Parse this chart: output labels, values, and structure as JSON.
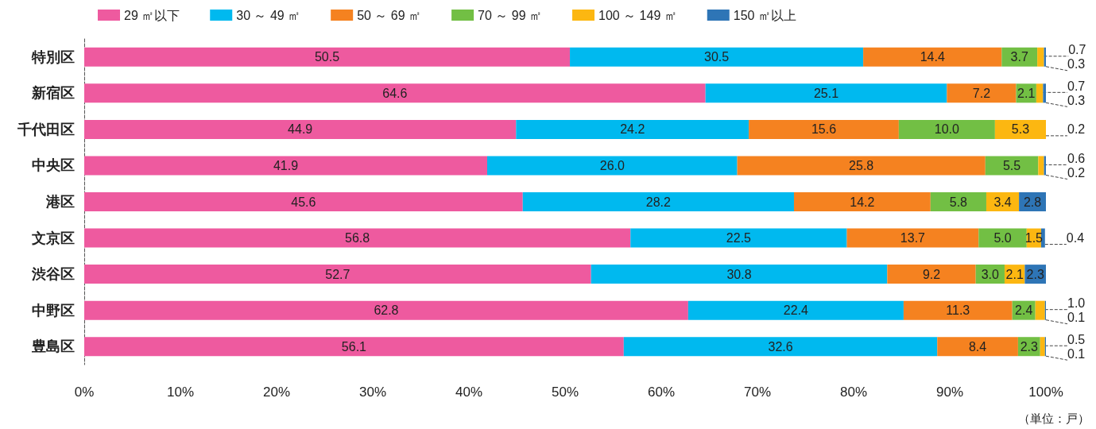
{
  "chart_data": {
    "type": "bar",
    "orientation": "horizontal",
    "stacked": true,
    "grid": false,
    "legend": "top left",
    "categories": [
      "特別区",
      "新宿区",
      "千代田区",
      "中央区",
      "港区",
      "文京区",
      "渋谷区",
      "中野区",
      "豊島区"
    ],
    "series": [
      {
        "name": "29 ㎡以下",
        "color": "#ee5a9f",
        "values": [
          50.5,
          64.6,
          44.9,
          41.9,
          45.6,
          56.8,
          52.7,
          62.8,
          56.1
        ],
        "value_labels": [
          "50.5",
          "64.6",
          "44.9",
          "41.9",
          "45.6",
          "56.8",
          "52.7",
          "62.8",
          "56.1"
        ]
      },
      {
        "name": "30 ～ 49 ㎡",
        "color": "#00b9ef",
        "values": [
          30.5,
          25.1,
          24.2,
          26.0,
          28.2,
          22.5,
          30.8,
          22.4,
          32.6
        ],
        "value_labels": [
          "30.5",
          "25.1",
          "24.2",
          "26.0",
          "28.2",
          "22.5",
          "30.8",
          "22.4",
          "32.6"
        ]
      },
      {
        "name": "50 ～ 69 ㎡",
        "color": "#f58220",
        "values": [
          14.4,
          7.2,
          15.6,
          25.8,
          14.2,
          13.7,
          9.2,
          11.3,
          8.4
        ],
        "value_labels": [
          "14.4",
          "7.2",
          "15.6",
          "25.8",
          "14.2",
          "13.7",
          "9.2",
          "11.3",
          "8.4"
        ]
      },
      {
        "name": "70 ～ 99 ㎡",
        "color": "#72bf44",
        "values": [
          3.7,
          2.1,
          10.0,
          5.5,
          5.8,
          5.0,
          3.0,
          2.4,
          2.3
        ],
        "value_labels": [
          "3.7",
          "2.1",
          "10.0",
          "5.5",
          "5.8",
          "5.0",
          "3.0",
          "2.4",
          "2.3"
        ]
      },
      {
        "name": "100 ～ 149 ㎡",
        "color": "#fcb711",
        "values": [
          0.7,
          0.7,
          5.3,
          0.6,
          3.4,
          1.5,
          2.1,
          1.0,
          0.5
        ],
        "value_labels": [
          "0.7",
          "0.7",
          "5.3",
          "0.6",
          "3.4",
          "1.5",
          "2.1",
          "1.0",
          "0.5"
        ]
      },
      {
        "name": "150 ㎡以上",
        "color": "#2e75b6",
        "values": [
          0.3,
          0.3,
          0.2,
          0.2,
          2.8,
          0.4,
          2.3,
          0.1,
          0.1
        ],
        "value_labels": [
          "0.3",
          "0.3",
          "0.2",
          "0.2",
          "2.8",
          "0.4",
          "2.3",
          "0.1",
          "0.1"
        ]
      }
    ],
    "xlim": [
      0,
      100
    ],
    "xticks": [
      {
        "value": 0,
        "label": "0%"
      },
      {
        "value": 10,
        "label": "10%"
      },
      {
        "value": 20,
        "label": "20%"
      },
      {
        "value": 30,
        "label": "30%"
      },
      {
        "value": 40,
        "label": "40%"
      },
      {
        "value": 50,
        "label": "50%"
      },
      {
        "value": 60,
        "label": "60%"
      },
      {
        "value": 70,
        "label": "70%"
      },
      {
        "value": 80,
        "label": "80%"
      },
      {
        "value": 90,
        "label": "90%"
      },
      {
        "value": 100,
        "label": "100%"
      }
    ],
    "annotations": [
      "（単位：戸）"
    ]
  }
}
